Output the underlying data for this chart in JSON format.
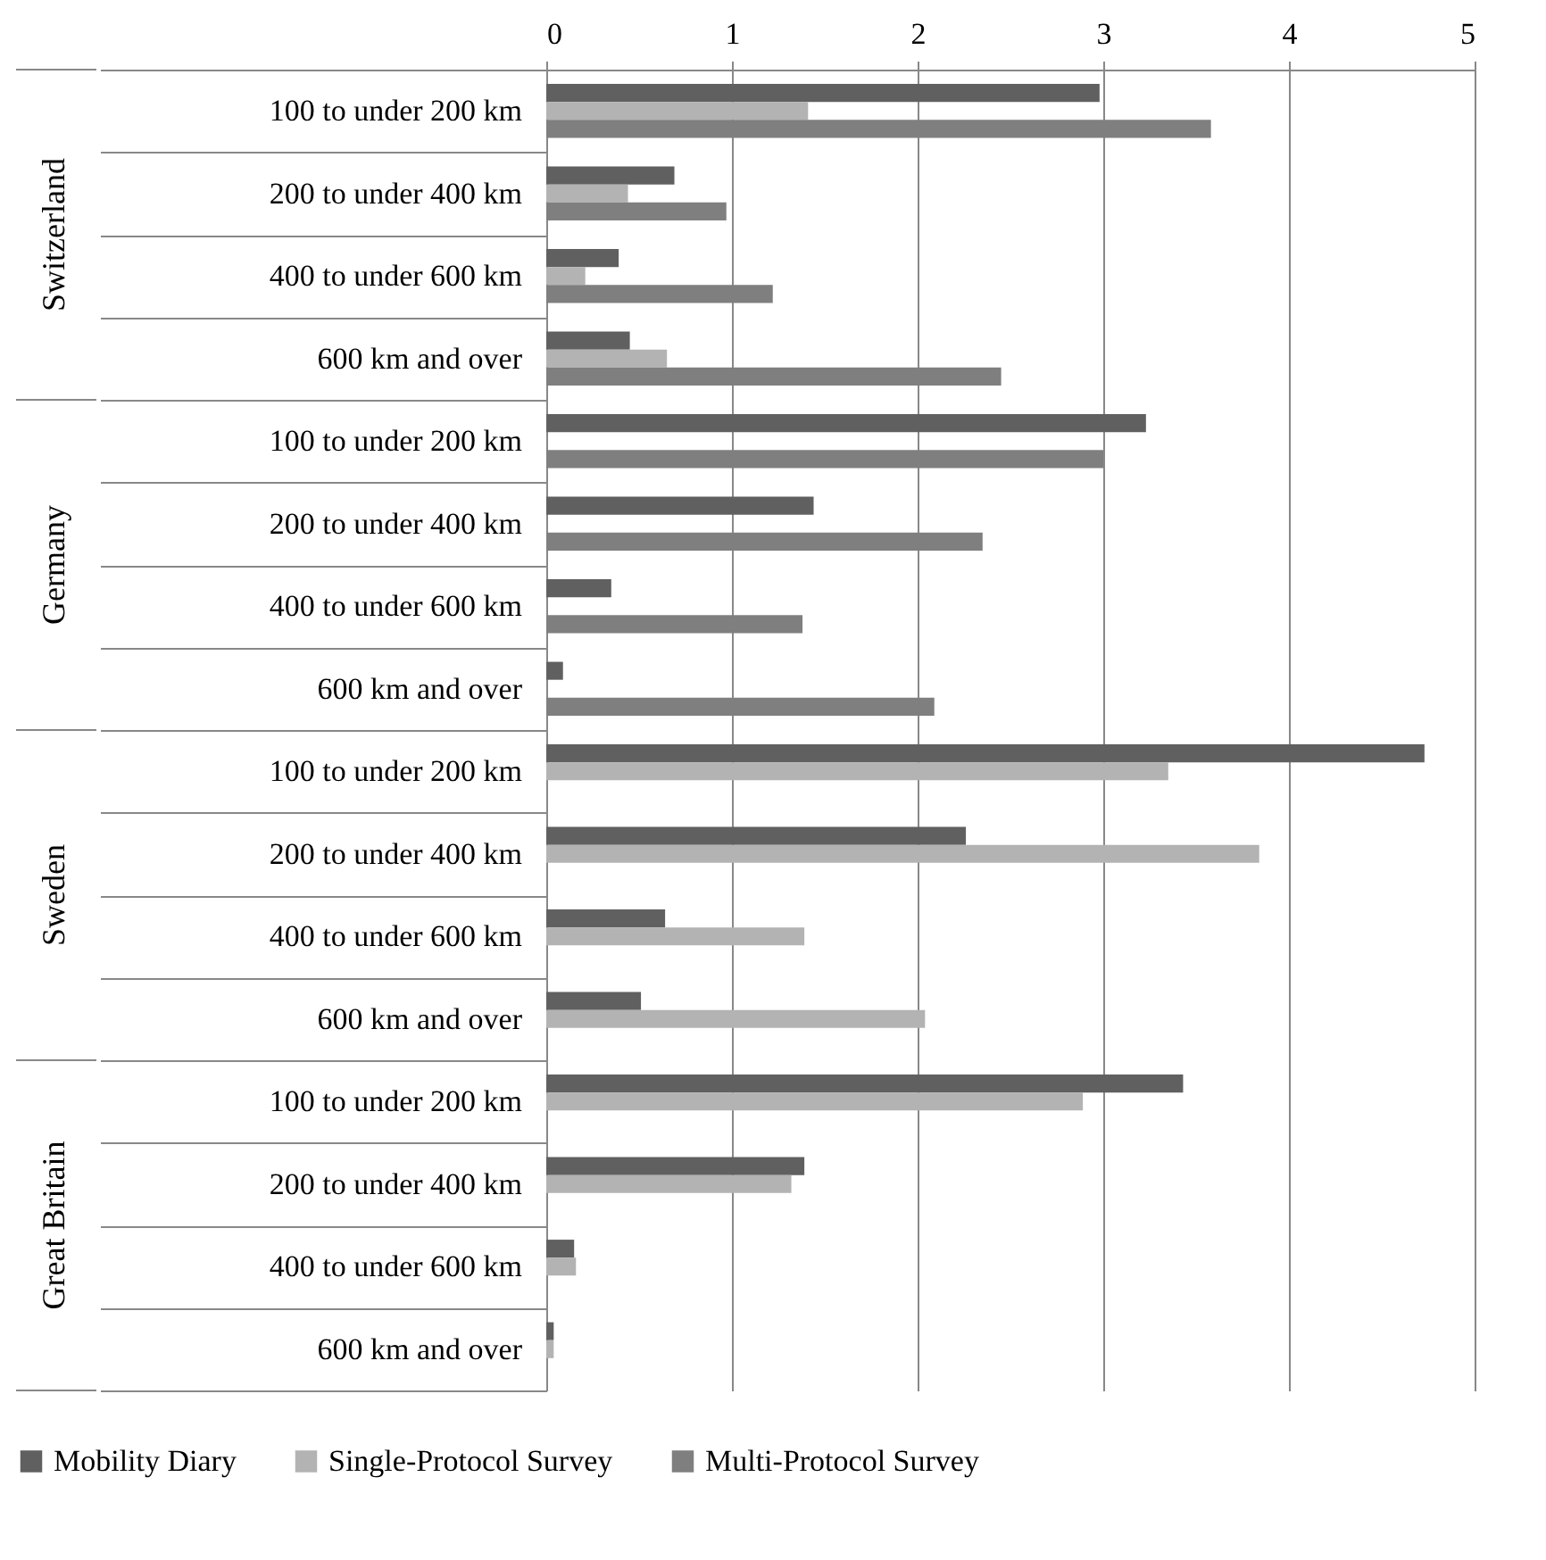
{
  "chart_data": {
    "type": "bar",
    "orientation": "horizontal",
    "categories": [
      "100 to under 200 km",
      "200 to under 400 km",
      "400 to under 600 km",
      "600 km and over",
      "100 to under 200 km",
      "200 to under 400 km",
      "400 to under 600 km",
      "600 km and over",
      "100 to under 200 km",
      "200 to under 400 km",
      "400 to under 600 km",
      "600 km and over",
      "100 to under 200 km",
      "200 to under 400 km",
      "400 to under 600 km",
      "600 km and over"
    ],
    "series": [
      {
        "name": "Mobility Diary",
        "color": "#606060",
        "values": [
          2.98,
          0.69,
          0.39,
          0.45,
          3.23,
          1.44,
          0.35,
          0.09,
          4.73,
          2.26,
          0.64,
          0.51,
          3.43,
          1.39,
          0.15,
          0.04
        ]
      },
      {
        "name": "Single-Protocol Survey",
        "color": "#b3b3b3",
        "values": [
          1.41,
          0.44,
          0.21,
          0.65,
          null,
          null,
          null,
          null,
          3.35,
          3.84,
          1.39,
          2.04,
          2.89,
          1.32,
          0.16,
          0.04
        ]
      },
      {
        "name": "Multi-Protocol Survey",
        "color": "#7f7f7f",
        "values": [
          3.58,
          0.97,
          1.22,
          2.45,
          3.0,
          2.35,
          1.38,
          2.09,
          null,
          null,
          null,
          null,
          null,
          null,
          null,
          null
        ]
      }
    ],
    "annotations": [
      "Switzerland",
      "Germany",
      "Sweden",
      "Great Britain"
    ],
    "xlim": [
      0,
      5
    ],
    "xticks": [
      0,
      1,
      2,
      3,
      4,
      5
    ],
    "grid": "x",
    "legend": "bottom"
  }
}
